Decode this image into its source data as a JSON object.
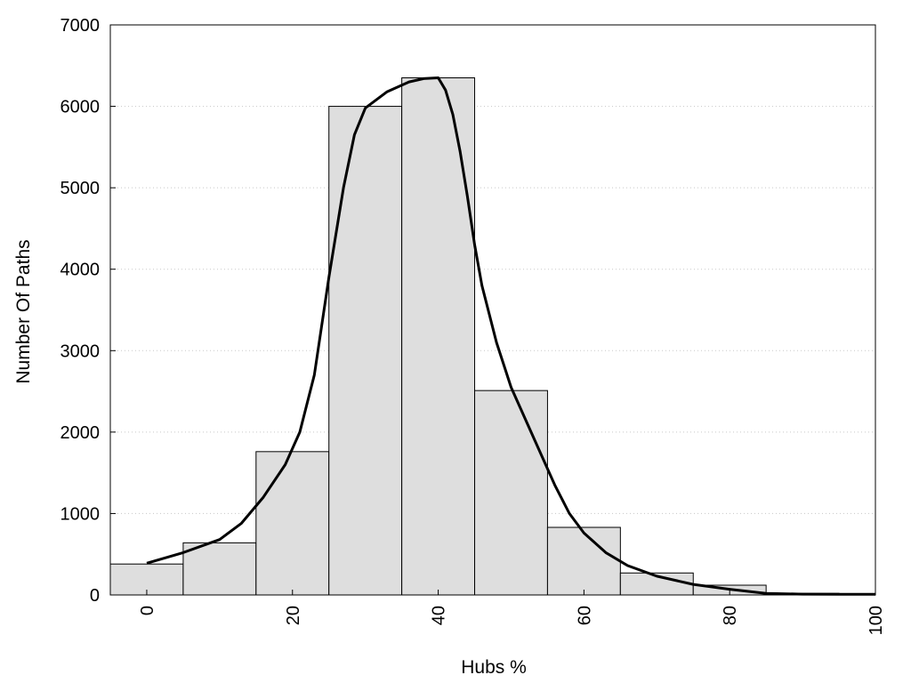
{
  "chart_data": {
    "type": "bar",
    "title": "",
    "xlabel": "Hubs %",
    "ylabel": "Number Of Paths",
    "xlim": [
      -5,
      100
    ],
    "ylim": [
      0,
      7000
    ],
    "bin_width": 10,
    "bars": [
      {
        "x": 0,
        "value": 380
      },
      {
        "x": 10,
        "value": 640
      },
      {
        "x": 20,
        "value": 1760
      },
      {
        "x": 30,
        "value": 6000
      },
      {
        "x": 40,
        "value": 6350
      },
      {
        "x": 50,
        "value": 2510
      },
      {
        "x": 60,
        "value": 830
      },
      {
        "x": 70,
        "value": 270
      },
      {
        "x": 80,
        "value": 120
      },
      {
        "x": 90,
        "value": 20
      }
    ],
    "density_curve": {
      "x": [
        0,
        5,
        10,
        13,
        16,
        19,
        21,
        23,
        25,
        27,
        28.5,
        30,
        33,
        36,
        38,
        40,
        41,
        42,
        43,
        44,
        45,
        46,
        48,
        50,
        53,
        56,
        58,
        60,
        63,
        66,
        70,
        75,
        80,
        85,
        90,
        95,
        100
      ],
      "y": [
        390,
        520,
        680,
        880,
        1200,
        1600,
        2000,
        2700,
        3900,
        5000,
        5650,
        5980,
        6180,
        6300,
        6340,
        6350,
        6200,
        5900,
        5450,
        4900,
        4300,
        3800,
        3100,
        2550,
        1950,
        1350,
        1000,
        760,
        520,
        360,
        230,
        130,
        70,
        20,
        10,
        8,
        8
      ]
    },
    "xticks": [
      0,
      20,
      40,
      60,
      80,
      100
    ],
    "yticks": [
      0,
      1000,
      2000,
      3000,
      4000,
      5000,
      6000,
      7000
    ],
    "grid": true,
    "bar_color": "#dedede",
    "line_color": "#000000"
  }
}
